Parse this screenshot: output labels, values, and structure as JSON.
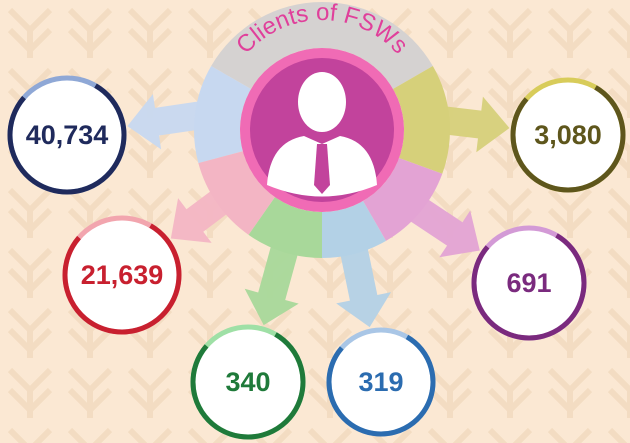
{
  "title": "Clients of FSWs",
  "nodes": [
    {
      "label": "40,734"
    },
    {
      "label": "3,080"
    },
    {
      "label": "21,639"
    },
    {
      "label": "691"
    },
    {
      "label": "340"
    },
    {
      "label": "319"
    }
  ]
}
